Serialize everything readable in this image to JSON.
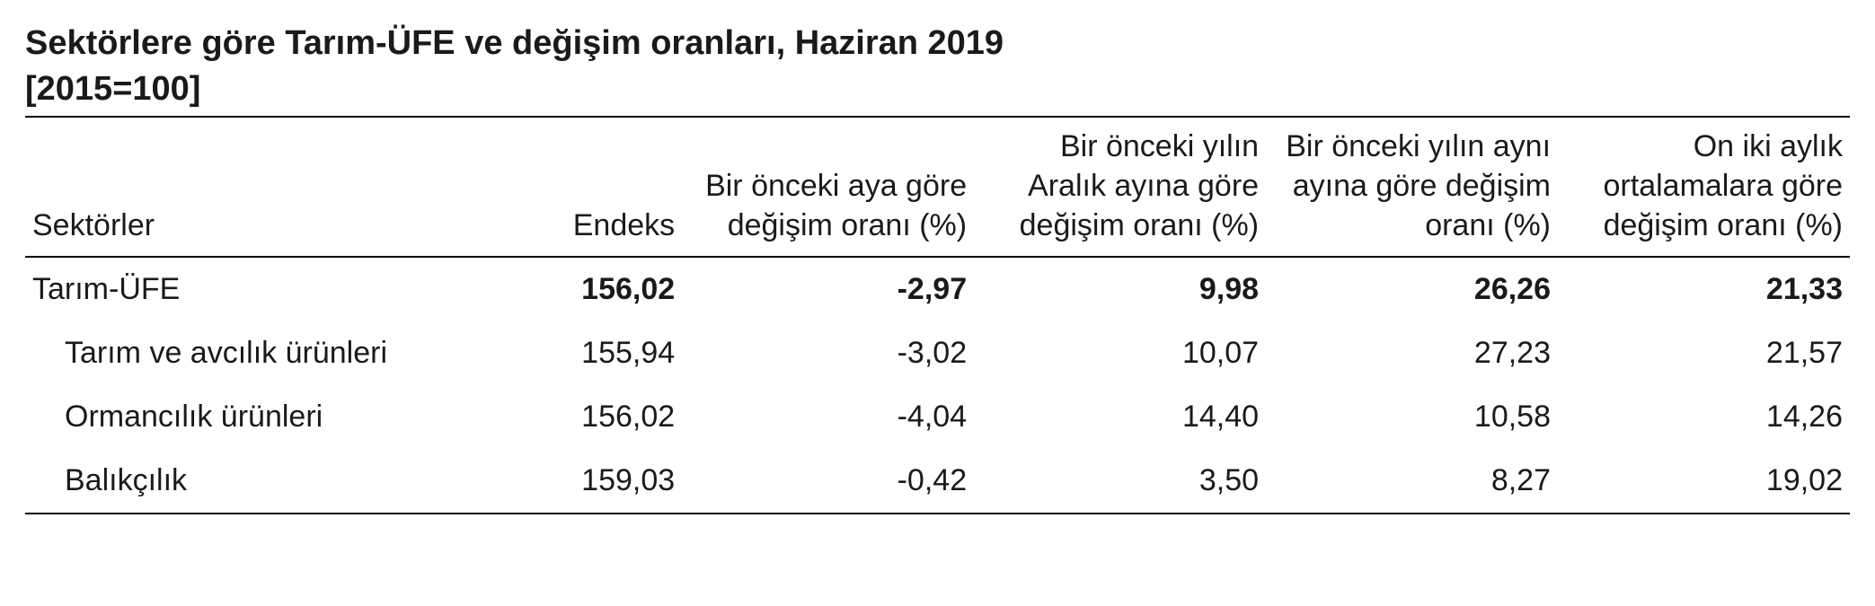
{
  "title": "Sektörlere göre Tarım-ÜFE ve değişim oranları, Haziran 2019",
  "subtitle": "[2015=100]",
  "table": {
    "type": "table",
    "background_color": "#ffffff",
    "border_color": "#000000",
    "text_color": "#1a1a1a",
    "header_fontsize": 34,
    "body_fontsize": 34,
    "columns": [
      {
        "key": "sector",
        "label": "Sektörler",
        "align": "left",
        "width_pct": 24
      },
      {
        "key": "index",
        "label": "Endeks",
        "align": "right",
        "width_pct": 12
      },
      {
        "key": "mom",
        "label": "Bir önceki aya göre değişim oranı (%)",
        "align": "right",
        "width_pct": 16
      },
      {
        "key": "dec",
        "label": "Bir önceki yılın Aralık ayına göre değişim oranı (%)",
        "align": "right",
        "width_pct": 16
      },
      {
        "key": "yoy",
        "label": "Bir önceki yılın aynı ayına göre değişim oranı (%)",
        "align": "right",
        "width_pct": 16
      },
      {
        "key": "t12m",
        "label": "On iki aylık ortalamalara göre değişim oranı (%)",
        "align": "right",
        "width_pct": 16
      }
    ],
    "rows": [
      {
        "bold": true,
        "indent": false,
        "cells": [
          "Tarım-ÜFE",
          "156,02",
          "-2,97",
          "9,98",
          "26,26",
          "21,33"
        ]
      },
      {
        "bold": false,
        "indent": true,
        "cells": [
          "Tarım ve avcılık ürünleri",
          "155,94",
          "-3,02",
          "10,07",
          "27,23",
          "21,57"
        ]
      },
      {
        "bold": false,
        "indent": true,
        "cells": [
          "Ormancılık ürünleri",
          "156,02",
          "-4,04",
          "14,40",
          "10,58",
          "14,26"
        ]
      },
      {
        "bold": false,
        "indent": true,
        "cells": [
          "Balıkçılık",
          "159,03",
          "-0,42",
          "3,50",
          "8,27",
          "19,02"
        ]
      }
    ]
  }
}
